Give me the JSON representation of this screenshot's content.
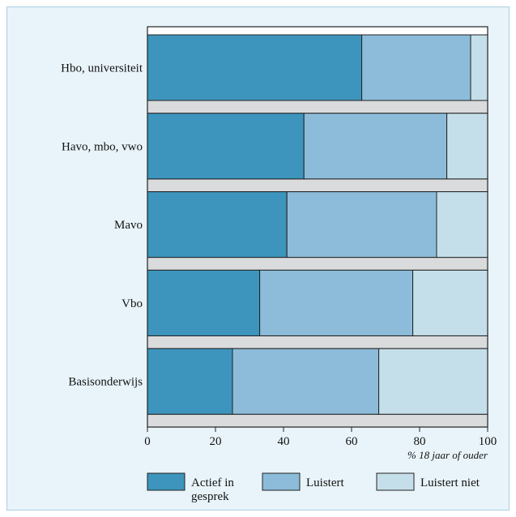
{
  "chart_data": {
    "type": "bar",
    "orientation": "horizontal",
    "stacked": true,
    "categories": [
      "Hbo, universiteit",
      "Havo, mbo, vwo",
      "Mavo",
      "Vbo",
      "Basisonderwijs"
    ],
    "series": [
      {
        "name": "Actief in gesprek",
        "label_lines": [
          "Actief in",
          "gesprek"
        ],
        "color": "#3d95bd",
        "values": [
          63,
          46,
          41,
          33,
          25
        ]
      },
      {
        "name": "Luistert",
        "label_lines": [
          "Luistert"
        ],
        "color": "#8cbcd9",
        "values": [
          32,
          42,
          44,
          45,
          43
        ]
      },
      {
        "name": "Luistert niet",
        "label_lines": [
          "Luistert niet"
        ],
        "color": "#c5dfea",
        "values": [
          5,
          12,
          15,
          22,
          32
        ]
      }
    ],
    "xlim": [
      0,
      100
    ],
    "xticks": [
      0,
      20,
      40,
      60,
      80,
      100
    ],
    "xlabel": "% 18 jaar of ouder",
    "legend_position": "bottom",
    "grid": false
  },
  "colors": {
    "frame_background": "#e9f4fa",
    "frame_border": "#a9cfe3",
    "gap_band": "#d9dbdc"
  }
}
